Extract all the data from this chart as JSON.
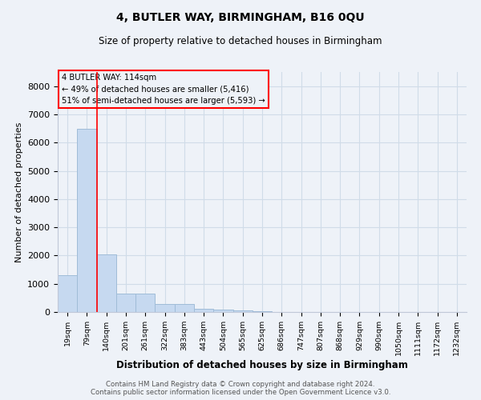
{
  "title": "4, BUTLER WAY, BIRMINGHAM, B16 0QU",
  "subtitle": "Size of property relative to detached houses in Birmingham",
  "xlabel": "Distribution of detached houses by size in Birmingham",
  "ylabel": "Number of detached properties",
  "footer_line1": "Contains HM Land Registry data © Crown copyright and database right 2024.",
  "footer_line2": "Contains public sector information licensed under the Open Government Licence v3.0.",
  "annotation_line1": "4 BUTLER WAY: 114sqm",
  "annotation_line2": "← 49% of detached houses are smaller (5,416)",
  "annotation_line3": "51% of semi-detached houses are larger (5,593) →",
  "bar_labels": [
    "19sqm",
    "79sqm",
    "140sqm",
    "201sqm",
    "261sqm",
    "322sqm",
    "383sqm",
    "443sqm",
    "504sqm",
    "565sqm",
    "625sqm",
    "686sqm",
    "747sqm",
    "807sqm",
    "868sqm",
    "929sqm",
    "990sqm",
    "1050sqm",
    "1111sqm",
    "1172sqm",
    "1232sqm"
  ],
  "bar_values": [
    1300,
    6500,
    2050,
    650,
    650,
    280,
    280,
    120,
    80,
    55,
    20,
    0,
    0,
    0,
    0,
    0,
    0,
    0,
    0,
    0,
    0
  ],
  "bar_color": "#c6d9f0",
  "bar_edge_color": "#a0bcd8",
  "red_line_x": 1.52,
  "ylim": [
    0,
    8500
  ],
  "yticks": [
    0,
    1000,
    2000,
    3000,
    4000,
    5000,
    6000,
    7000,
    8000
  ],
  "grid_color": "#d0dce8",
  "background_color": "#eef2f8"
}
